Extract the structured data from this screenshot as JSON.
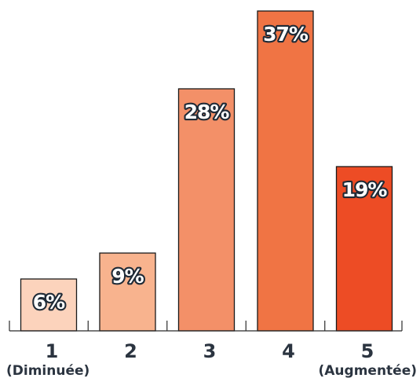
{
  "chart_data": {
    "type": "bar",
    "categories": [
      "1",
      "2",
      "3",
      "4",
      "5"
    ],
    "category_sublabels": [
      "(Diminuée)",
      "",
      "",
      "",
      "(Augmentée)"
    ],
    "values": [
      6,
      9,
      28,
      37,
      19
    ],
    "data_labels": [
      "6%",
      "9%",
      "28%",
      "37%",
      "19%"
    ],
    "bar_colors": [
      "#fcd3bc",
      "#f8b38e",
      "#f39068",
      "#f07444",
      "#ed4c25"
    ],
    "label_outline_color": "#1f2a36",
    "label_fill_color": "#ffffff",
    "tick_label_color": "#2b3440",
    "ylim": [
      0,
      37
    ],
    "title": "",
    "xlabel": "",
    "ylabel": "",
    "grid": false,
    "legend": "none"
  }
}
